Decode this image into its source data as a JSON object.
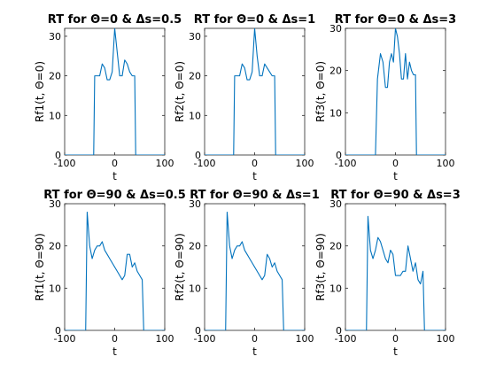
{
  "chart_data": [
    {
      "type": "line",
      "title": "RT for Θ=0 & Δs=0.5",
      "xlabel": "t",
      "ylabel": "Rf1(t, Θ=0)",
      "xlim": [
        -100,
        100
      ],
      "ylim": [
        0,
        32
      ],
      "xticks": [
        "-100",
        "0",
        "100"
      ],
      "yticks": [
        "0",
        "10",
        "20",
        "30"
      ],
      "xtick_values": [
        -100,
        0,
        100
      ],
      "ytick_values": [
        0,
        10,
        20,
        30
      ],
      "grid": false,
      "series": [
        {
          "color": "#0072bd",
          "x": [
            -100,
            -42,
            -40,
            -30,
            -25,
            -20,
            -15,
            -10,
            -5,
            0,
            5,
            10,
            15,
            20,
            25,
            30,
            35,
            40,
            42,
            100
          ],
          "y": [
            0,
            0,
            20,
            20,
            23,
            22,
            19,
            19,
            21,
            32,
            26,
            20,
            20,
            24,
            23,
            21,
            20,
            20,
            0,
            0
          ]
        }
      ]
    },
    {
      "type": "line",
      "title": "RT for Θ=0 & Δs=1",
      "xlabel": "t",
      "ylabel": "Rf2(t, Θ=0)",
      "xlim": [
        -100,
        100
      ],
      "ylim": [
        0,
        32
      ],
      "xticks": [
        "-100",
        "0",
        "100"
      ],
      "yticks": [
        "0",
        "10",
        "20",
        "30"
      ],
      "xtick_values": [
        -100,
        0,
        100
      ],
      "ytick_values": [
        0,
        10,
        20,
        30
      ],
      "grid": false,
      "series": [
        {
          "color": "#0072bd",
          "x": [
            -100,
            -42,
            -40,
            -30,
            -25,
            -20,
            -15,
            -10,
            -5,
            0,
            5,
            10,
            15,
            20,
            25,
            30,
            35,
            40,
            42,
            100
          ],
          "y": [
            0,
            0,
            20,
            20,
            23,
            22,
            19,
            19,
            21,
            32,
            25,
            20,
            20,
            23,
            22,
            21,
            20,
            20,
            0,
            0
          ]
        }
      ]
    },
    {
      "type": "line",
      "title": "RT for Θ=0 & Δs=3",
      "xlabel": "t",
      "ylabel": "Rf3(t, Θ=0)",
      "xlim": [
        -100,
        100
      ],
      "ylim": [
        0,
        30
      ],
      "xticks": [
        "-100",
        "0",
        "100"
      ],
      "yticks": [
        "0",
        "10",
        "20",
        "30"
      ],
      "xtick_values": [
        -100,
        0,
        100
      ],
      "ytick_values": [
        0,
        10,
        20,
        30
      ],
      "grid": false,
      "series": [
        {
          "color": "#0072bd",
          "x": [
            -100,
            -40,
            -36,
            -30,
            -25,
            -20,
            -16,
            -12,
            -8,
            -4,
            0,
            4,
            8,
            12,
            16,
            20,
            24,
            28,
            32,
            36,
            40,
            42,
            100
          ],
          "y": [
            0,
            0,
            18,
            24,
            22,
            16,
            16,
            22,
            24,
            22,
            30,
            28,
            24,
            18,
            18,
            24,
            18,
            22,
            20,
            19,
            19,
            0,
            0
          ]
        }
      ]
    },
    {
      "type": "line",
      "title": "RT for Θ=90 & Δs=0.5",
      "xlabel": "t",
      "ylabel": "Rf1(t, Θ=90)",
      "xlim": [
        -100,
        100
      ],
      "ylim": [
        0,
        30
      ],
      "xticks": [
        "-100",
        "0",
        "100"
      ],
      "yticks": [
        "0",
        "10",
        "20",
        "30"
      ],
      "xtick_values": [
        -100,
        0,
        100
      ],
      "ytick_values": [
        0,
        10,
        20,
        30
      ],
      "grid": false,
      "series": [
        {
          "color": "#0072bd",
          "x": [
            -100,
            -58,
            -55,
            -50,
            -45,
            -40,
            -35,
            -30,
            -25,
            -20,
            -15,
            -10,
            -5,
            0,
            5,
            10,
            15,
            20,
            25,
            30,
            35,
            40,
            45,
            50,
            55,
            58,
            100
          ],
          "y": [
            0,
            0,
            28,
            20,
            17,
            19,
            20,
            20,
            21,
            19,
            18,
            17,
            16,
            15,
            14,
            13,
            12,
            13,
            18,
            18,
            15,
            16,
            14,
            13,
            12,
            0,
            0
          ]
        }
      ]
    },
    {
      "type": "line",
      "title": "RT for Θ=90 & Δs=1",
      "xlabel": "t",
      "ylabel": "Rf2(t, Θ=90)",
      "xlim": [
        -100,
        100
      ],
      "ylim": [
        0,
        30
      ],
      "xticks": [
        "-100",
        "0",
        "100"
      ],
      "yticks": [
        "0",
        "10",
        "20",
        "30"
      ],
      "xtick_values": [
        -100,
        0,
        100
      ],
      "ytick_values": [
        0,
        10,
        20,
        30
      ],
      "grid": false,
      "series": [
        {
          "color": "#0072bd",
          "x": [
            -100,
            -58,
            -55,
            -50,
            -45,
            -40,
            -35,
            -30,
            -25,
            -20,
            -15,
            -10,
            -5,
            0,
            5,
            10,
            15,
            20,
            25,
            30,
            35,
            40,
            45,
            50,
            55,
            58,
            100
          ],
          "y": [
            0,
            0,
            28,
            20,
            17,
            19,
            20,
            20,
            21,
            19,
            18,
            17,
            16,
            15,
            14,
            13,
            12,
            13,
            18,
            17,
            15,
            16,
            14,
            13,
            12,
            0,
            0
          ]
        }
      ]
    },
    {
      "type": "line",
      "title": "RT for Θ=90 & Δs=3",
      "xlabel": "t",
      "ylabel": "Rf3(t, Θ=90)",
      "xlim": [
        -100,
        100
      ],
      "ylim": [
        0,
        30
      ],
      "xticks": [
        "-100",
        "0",
        "100"
      ],
      "yticks": [
        "0",
        "10",
        "20",
        "30"
      ],
      "xtick_values": [
        -100,
        0,
        100
      ],
      "ytick_values": [
        0,
        10,
        20,
        30
      ],
      "grid": false,
      "series": [
        {
          "color": "#0072bd",
          "x": [
            -100,
            -58,
            -55,
            -50,
            -45,
            -40,
            -35,
            -30,
            -25,
            -20,
            -15,
            -10,
            -5,
            0,
            5,
            10,
            15,
            20,
            25,
            30,
            35,
            40,
            45,
            50,
            55,
            58,
            100
          ],
          "y": [
            0,
            0,
            27,
            19,
            17,
            19,
            22,
            21,
            19,
            17,
            16,
            19,
            18,
            13,
            13,
            13,
            14,
            14,
            20,
            17,
            14,
            16,
            12,
            11,
            14,
            0,
            0
          ]
        }
      ]
    }
  ]
}
